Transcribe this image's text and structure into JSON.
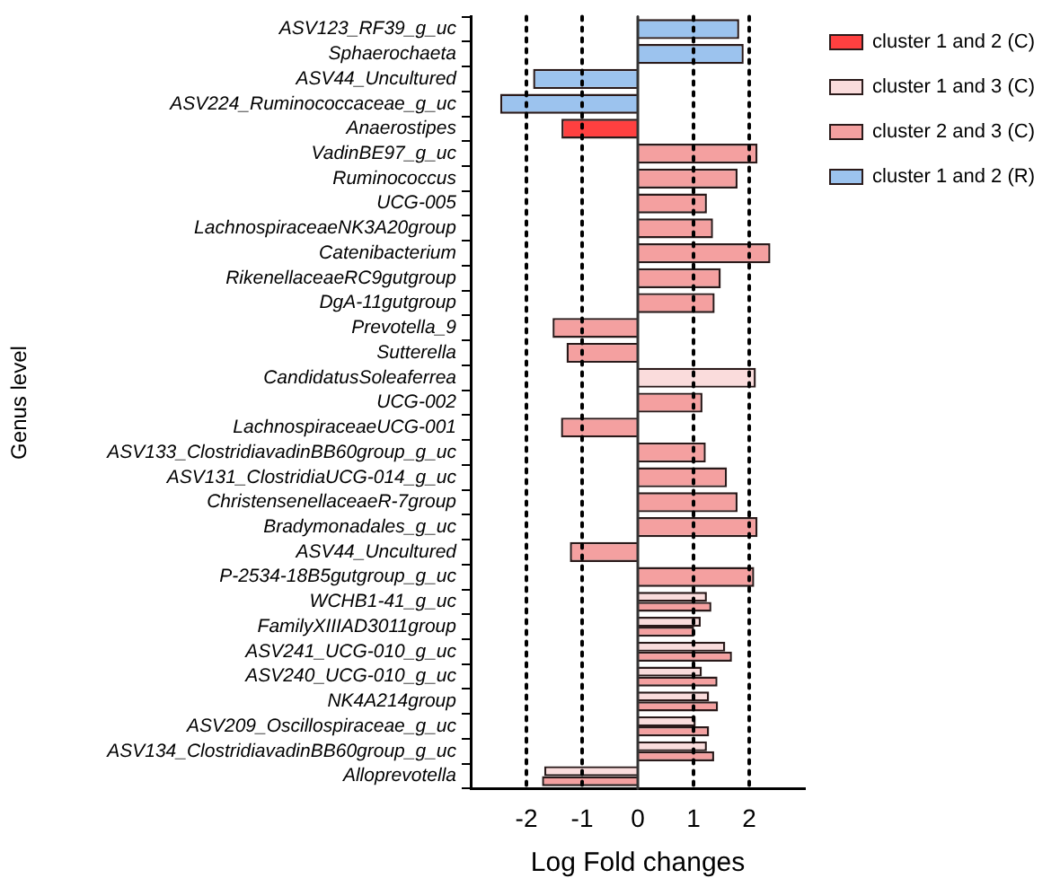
{
  "chart_data": {
    "type": "bar",
    "orientation": "horizontal",
    "xlabel": "Log Fold changes",
    "ylabel": "Genus level",
    "categories": [
      "ASV123_RF39_g_uc",
      "Sphaerochaeta",
      "ASV44_Uncultured",
      "ASV224_Ruminococcaceae_g_uc",
      "Anaerostipes",
      "VadinBE97_g_uc",
      "Ruminococcus",
      "UCG-005",
      "LachnospiraceaeNK3A20group",
      "Catenibacterium",
      "RikenellaceaeRC9gutgroup",
      "DgA-11gutgroup",
      "Prevotella_9",
      "Sutterella",
      "CandidatusSoleaferrea",
      "UCG-002",
      "LachnospiraceaeUCG-001",
      "ASV133_ClostridiavadinBB60group_g_uc",
      "ASV131_ClostridiaUCG-014_g_uc",
      "ChristensenellaceaeR-7group",
      "Bradymonadales_g_uc",
      "ASV44_Uncultured",
      "P-2534-18B5gutgroup_g_uc",
      "WCHB1-41_g_uc",
      "FamilyXIIIAD3011group",
      "ASV241_UCG-010_g_uc",
      "ASV240_UCG-010_g_uc",
      "NK4A214group",
      "ASV209_Oscillospiraceae_g_uc",
      "ASV134_ClostridiavadinBB60group_g_uc",
      "Alloprevotella"
    ],
    "series": [
      {
        "name": "cluster 1 and 2 (C)",
        "color": "#ff4040",
        "values": [
          null,
          null,
          null,
          null,
          -1.37,
          null,
          null,
          null,
          null,
          null,
          null,
          null,
          null,
          null,
          null,
          null,
          null,
          null,
          null,
          null,
          null,
          null,
          null,
          null,
          null,
          null,
          null,
          null,
          null,
          null,
          null
        ]
      },
      {
        "name": "cluster 1 and 3 (C)",
        "color": "#fadcdc",
        "values": [
          null,
          null,
          null,
          null,
          null,
          null,
          null,
          null,
          null,
          null,
          null,
          null,
          null,
          null,
          2.12,
          null,
          null,
          null,
          null,
          null,
          null,
          null,
          null,
          1.24,
          1.13,
          1.57,
          1.15,
          1.28,
          1.04,
          1.24,
          -1.68
        ]
      },
      {
        "name": "cluster 2 and 3 (C)",
        "color": "#f4a0a0",
        "values": [
          null,
          null,
          null,
          null,
          null,
          2.15,
          1.79,
          1.24,
          1.35,
          2.38,
          1.49,
          1.38,
          -1.53,
          -1.28,
          null,
          1.16,
          -1.38,
          1.22,
          1.6,
          1.79,
          2.15,
          -1.22,
          2.09,
          1.32,
          1.01,
          1.69,
          1.43,
          1.44,
          1.28,
          1.37,
          -1.72
        ]
      },
      {
        "name": "cluster 1 and 2 (R)",
        "color": "#9cc3ee",
        "values": [
          1.82,
          1.9,
          -1.88,
          -2.47,
          null,
          null,
          null,
          null,
          null,
          null,
          null,
          null,
          null,
          null,
          null,
          null,
          null,
          null,
          null,
          null,
          null,
          null,
          null,
          null,
          null,
          null,
          null,
          null,
          null,
          null,
          null
        ]
      }
    ],
    "xlim": [
      -3,
      3
    ],
    "xticks": [
      -2,
      -1,
      0,
      1,
      2
    ],
    "grid": false,
    "legend": "top right",
    "ref_lines": [
      {
        "axis": "x",
        "value": -2,
        "line_style": "dotted",
        "color": "#000000"
      },
      {
        "axis": "x",
        "value": -1,
        "line_style": "dotted",
        "color": "#000000"
      },
      {
        "axis": "x",
        "value": 0,
        "line_style": "solid",
        "color": "#333333"
      },
      {
        "axis": "x",
        "value": 1,
        "line_style": "dotted",
        "color": "#000000"
      },
      {
        "axis": "x",
        "value": 2,
        "line_style": "dotted",
        "color": "#000000"
      }
    ]
  }
}
